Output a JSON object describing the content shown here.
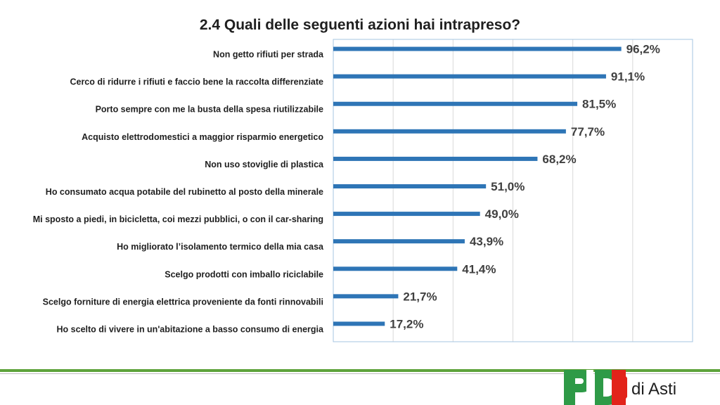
{
  "header": {
    "title": "2.4 Quali delle seguenti azioni hai intrapreso?"
  },
  "chart_data": {
    "type": "bar",
    "orientation": "horizontal",
    "categories": [
      "Non getto rifiuti per strada",
      "Cerco di ridurre i rifiuti e faccio bene la raccolta differenziate",
      "Porto sempre con me la busta della spesa riutilizzabile",
      "Acquisto elettrodomestici a maggior risparmio energetico",
      "Non uso stoviglie di plastica",
      "Ho consumato acqua potabile del rubinetto al posto della minerale",
      "Mi sposto a piedi, in bicicletta, coi mezzi pubblici, o con il car-sharing",
      "Ho migliorato l’isolamento termico della mia casa",
      "Scelgo prodotti con imballo riciclabile",
      "Scelgo forniture di energia elettrica proveniente da fonti rinnovabili",
      "Ho scelto di vivere in un'abitazione a basso consumo di energia"
    ],
    "values": [
      96.2,
      91.1,
      81.5,
      77.7,
      68.2,
      51.0,
      49.0,
      43.9,
      41.4,
      21.7,
      17.2
    ],
    "value_labels": [
      "96,2%",
      "91,1%",
      "81,5%",
      "77,7%",
      "68,2%",
      "51,0%",
      "49,0%",
      "43,9%",
      "41,4%",
      "21,7%",
      "17,2%"
    ],
    "xlim": [
      0,
      120
    ],
    "grid": true,
    "bar_color": "#2e75b6",
    "grid_color": "#d9d9d9",
    "axis_color": "#a6c4e0"
  },
  "footer": {
    "logo_letters": "PD",
    "place": "di Asti",
    "colors": {
      "green": "#2e9a47",
      "red": "#e2231a",
      "line": "#5ea33b"
    }
  }
}
